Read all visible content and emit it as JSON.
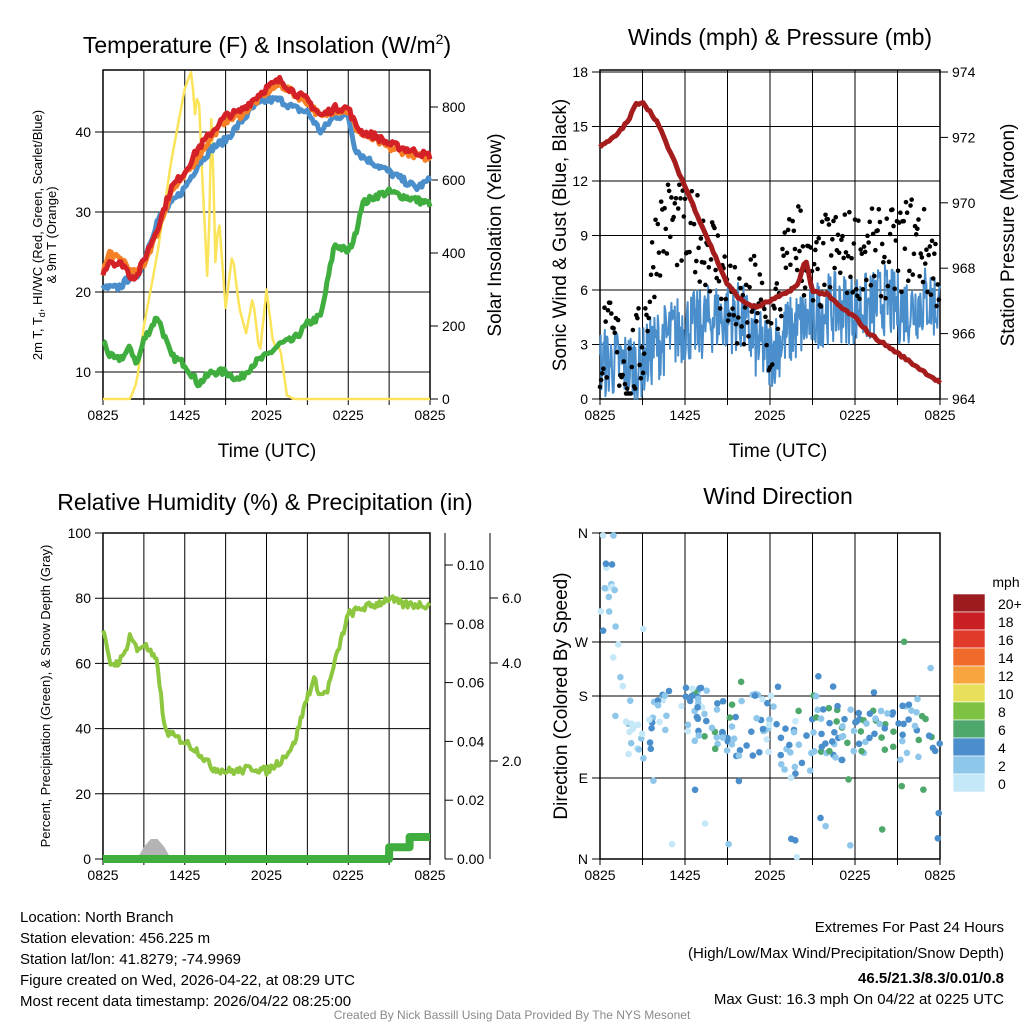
{
  "footer": {
    "location": "Location: North Branch",
    "elevation": "Station elevation: 456.225 m",
    "latlon": "Station lat/lon: 41.8279; -74.9969",
    "created": "Figure created on Wed, 2026-04-22, at 08:29 UTC",
    "recent": "Most recent data timestamp: 2026/04/22 08:25:00",
    "extremes_title": "Extremes For Past 24 Hours",
    "extremes_sub": "(High/Low/Max Wind/Precipitation/Snow Depth)",
    "extremes_values": "46.5/21.3/8.3/0.01/0.8",
    "max_gust": "Max Gust: 16.3 mph On 04/22 at 0225 UTC",
    "credit": "Created By Nick Bassill Using Data Provided By The NYS Mesonet",
    "extremes_color": "#d42027"
  },
  "chart_data": [
    {
      "id": "temperature",
      "type": "line",
      "title_a": "Temperature (F) & Insolation (W/m",
      "title_sup": "2",
      "title_b": ")",
      "xlabel": "Time (UTC)",
      "xticks": [
        "0825",
        "1425",
        "2025",
        "0225",
        "0825"
      ],
      "ylabel_a": "2m T, T",
      "ylabel_sub": "d",
      "ylabel_b": ", HI/WC (Red, Green, Scarlet/Blue)",
      "ylabel2": "& 9m T (Orange)",
      "yticks": [
        "10",
        "20",
        "30",
        "40"
      ],
      "ylim": [
        6.6,
        47.7
      ],
      "y2label": "Solar Insolation (Yellow)",
      "y2ticks": [
        "0",
        "200",
        "400",
        "600",
        "800"
      ],
      "y2lim": [
        0,
        900
      ],
      "x_hours": [
        0,
        0.5,
        1,
        1.5,
        2,
        2.5,
        3,
        4,
        5,
        6,
        7,
        8,
        9,
        10,
        11,
        12,
        13,
        14,
        15,
        16,
        17,
        18,
        18.5,
        19,
        20,
        21,
        22,
        23,
        24
      ],
      "series": [
        {
          "name": "2m T",
          "color": "#d42027",
          "values": [
            22.5,
            24,
            23.5,
            23.5,
            22,
            22,
            24,
            28,
            33,
            35,
            38,
            40,
            42,
            42.5,
            44,
            45.5,
            46.5,
            45,
            44,
            42,
            43,
            43,
            41,
            40,
            39.5,
            38.5,
            38,
            37.5,
            37
          ]
        },
        {
          "name": "9m T",
          "color": "#f58025",
          "values": [
            22.5,
            25,
            24.2,
            24,
            22.5,
            22.3,
            23.5,
            27.5,
            32.5,
            34.5,
            37,
            39.5,
            41.5,
            42,
            43.5,
            45,
            46,
            44.8,
            43.8,
            41.8,
            42.8,
            42.6,
            40.7,
            39.7,
            39,
            38,
            37.6,
            37.1,
            36.7
          ]
        },
        {
          "name": "HI/WC",
          "color": "#4a8fcc",
          "values": [
            20.5,
            20.5,
            20.5,
            21,
            22,
            22,
            24,
            29,
            31,
            33,
            36,
            38,
            39,
            41,
            43,
            44,
            44,
            43,
            42.5,
            40,
            42,
            42,
            38,
            37,
            36,
            35,
            34,
            33,
            34
          ]
        },
        {
          "name": "Td",
          "color": "#3fae3f",
          "values": [
            14,
            12,
            11.5,
            12,
            13,
            11,
            14,
            17,
            12,
            11,
            8.5,
            10,
            10,
            9,
            11,
            12,
            13.5,
            14,
            16,
            17,
            26,
            25,
            27,
            31,
            32,
            32.5,
            32,
            31.5,
            31
          ]
        }
      ],
      "insolation": {
        "name": "Solar Insolation",
        "color": "#fbe35a",
        "x_hours": [
          0,
          2,
          2.5,
          3,
          4,
          5,
          5.5,
          6,
          6.5,
          6.75,
          7,
          7.3,
          7.5,
          7.7,
          8,
          8.2,
          8.5,
          9,
          9.5,
          10,
          10.5,
          11,
          11.5,
          12,
          12.5,
          13,
          13.5,
          14,
          24
        ],
        "values": [
          0,
          0,
          50,
          200,
          400,
          650,
          750,
          850,
          900,
          780,
          850,
          600,
          450,
          300,
          860,
          350,
          500,
          250,
          400,
          250,
          180,
          280,
          120,
          300,
          150,
          140,
          10,
          0,
          0
        ]
      }
    },
    {
      "id": "winds",
      "type": "line",
      "title": "Winds (mph) & Pressure (mb)",
      "xlabel": "Time (UTC)",
      "xticks": [
        "0825",
        "1425",
        "2025",
        "0225",
        "0825"
      ],
      "ylabel": "Sonic Wind & Gust (Blue, Black)",
      "yticks": [
        "0",
        "3",
        "6",
        "9",
        "12",
        "15",
        "18"
      ],
      "ylim": [
        0,
        18
      ],
      "y2label": "Station Pressure (Maroon)",
      "y2ticks": [
        "964",
        "966",
        "968",
        "970",
        "972",
        "974"
      ],
      "y2lim": [
        964,
        974
      ],
      "pressure": {
        "color": "#a51c1c",
        "x_hours": [
          0,
          1,
          2,
          2.5,
          3,
          4,
          5,
          6,
          7,
          8,
          9,
          10,
          11,
          12,
          13,
          14,
          14.5,
          15,
          16,
          17,
          18,
          19,
          20,
          21,
          22,
          24
        ],
        "values": [
          971.7,
          972,
          972.5,
          973,
          973.1,
          972.5,
          971.5,
          970.5,
          969.5,
          968.5,
          967.5,
          967,
          966.8,
          967,
          967.2,
          967.5,
          968.3,
          967.3,
          967.2,
          966.8,
          966.5,
          966,
          965.7,
          965.4,
          965.1,
          964.5
        ]
      },
      "wind_hourly_mean": {
        "color": "#4a8fcc",
        "values": [
          2,
          2,
          1.8,
          2,
          3,
          3.5,
          4,
          4,
          4.5,
          4.5,
          4.5,
          3,
          2.5,
          3.5,
          4,
          4.5,
          5,
          5,
          5,
          5,
          5.5,
          5,
          5,
          5.5,
          5
        ]
      },
      "gust_hourly_mean": {
        "color": "#000000",
        "values": [
          3,
          3,
          1.5,
          3,
          9,
          10,
          9,
          9,
          8,
          6,
          4,
          6,
          3,
          7,
          9,
          6,
          8,
          8,
          8,
          8,
          8,
          8,
          9,
          8,
          7
        ]
      }
    },
    {
      "id": "humidity",
      "type": "line",
      "title": "Relative Humidity (%) & Precipitation (in)",
      "xticks": [
        "0825",
        "1425",
        "2025",
        "0225",
        "0825"
      ],
      "ylabel": "Percent, Precipitation (Green), & Snow Depth (Gray)",
      "yticks": [
        "0",
        "20",
        "40",
        "60",
        "80",
        "100"
      ],
      "ylim": [
        0,
        100
      ],
      "y2ticks": [
        "0.00",
        "0.02",
        "0.04",
        "0.06",
        "0.08",
        "0.10"
      ],
      "y2lim": [
        0,
        0.11
      ],
      "y3ticks": [
        "2.0",
        "4.0",
        "6.0"
      ],
      "rh": {
        "color": "#8dc63f",
        "x_hours": [
          0,
          0.5,
          1,
          1.5,
          2,
          2.5,
          3,
          4,
          4.5,
          5,
          6,
          7,
          8,
          9,
          10,
          11,
          12,
          13,
          14,
          15,
          15.5,
          16,
          16.5,
          17,
          18,
          19,
          20,
          21,
          22,
          23,
          24
        ],
        "values": [
          70,
          60,
          60,
          62,
          69,
          64,
          66,
          60,
          40,
          38,
          36,
          33,
          28,
          27,
          27,
          28,
          27,
          30,
          35,
          50,
          55,
          50,
          52,
          60,
          75,
          77,
          78,
          80,
          78,
          78,
          78
        ]
      },
      "precip": {
        "color": "#3fae3f",
        "x_hours": [
          0,
          21,
          21,
          22.5,
          22.5,
          24
        ],
        "values": [
          0,
          0,
          0.004,
          0.004,
          0.0075,
          0.0075
        ]
      },
      "snow_depth": {
        "color": "#b4b4b4",
        "x_hours": [
          2.5,
          3,
          3.5,
          4,
          4.5,
          5
        ],
        "values": [
          0,
          3,
          5,
          5,
          3,
          0
        ]
      }
    },
    {
      "id": "wind_direction",
      "type": "scatter",
      "title": "Wind Direction",
      "xticks": [
        "0825",
        "1425",
        "2025",
        "0225",
        "0825"
      ],
      "ylabel": "Direction (Colored By Speed)",
      "yticks": [
        "N",
        "W",
        "S",
        "E",
        "N"
      ],
      "dir_hourly_mean": [
        310,
        310,
        150,
        140,
        150,
        160,
        170,
        160,
        150,
        150,
        140,
        150,
        150,
        120,
        130,
        150,
        140,
        140,
        145,
        150,
        150,
        145,
        145,
        145,
        140
      ],
      "colorbar": {
        "title": "mph",
        "labels": [
          "20+",
          "18",
          "16",
          "14",
          "12",
          "10",
          "8",
          "6",
          "4",
          "2",
          "0"
        ],
        "colors": [
          "#9b1b1e",
          "#c81e24",
          "#e03a2a",
          "#f06a2b",
          "#f7a541",
          "#e8e05a",
          "#7dc242",
          "#4ea86b",
          "#4a8fcc",
          "#8ec7ea",
          "#c4e8f8"
        ]
      }
    }
  ]
}
